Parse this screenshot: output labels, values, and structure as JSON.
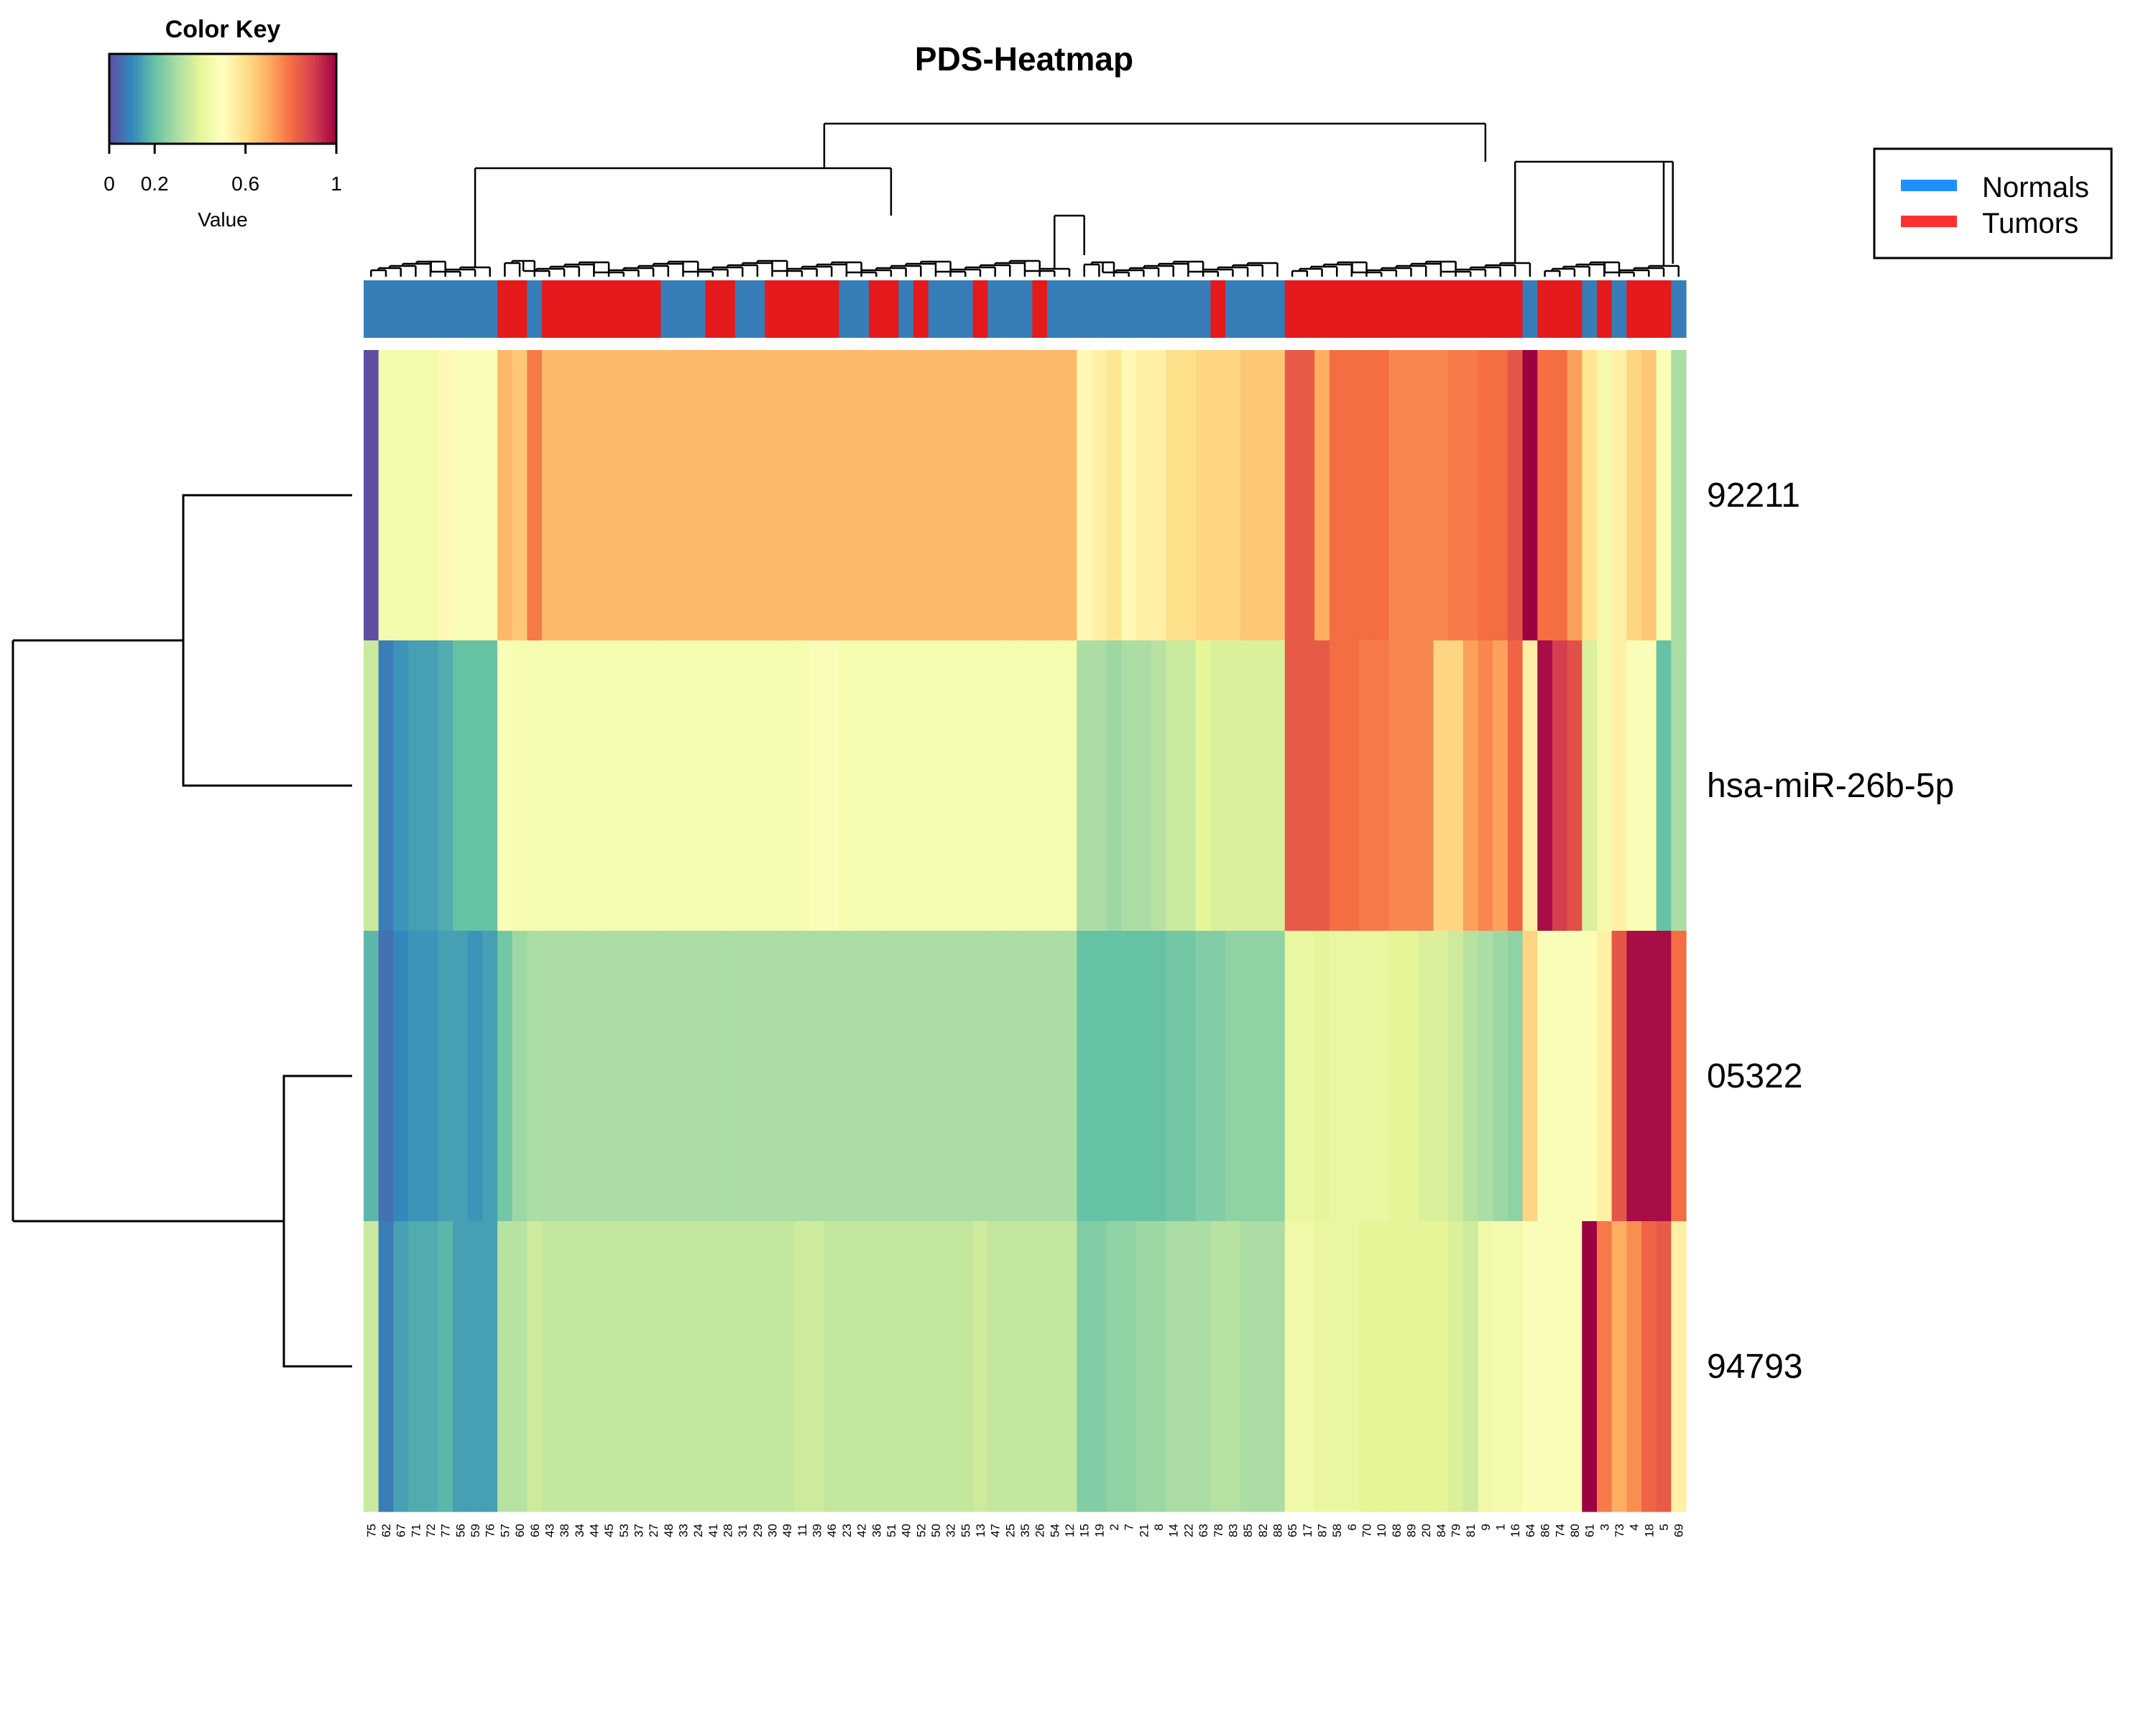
{
  "chart_data": {
    "type": "heatmap",
    "title": "PDS-Heatmap",
    "color_key": {
      "title": "Color Key",
      "xlabel": "Value",
      "ticks": [
        "0",
        "0.2",
        "0.6",
        "1"
      ],
      "tick_values": [
        0,
        0.2,
        0.6,
        1
      ],
      "range": [
        0,
        1
      ],
      "palette": [
        "#5E4FA2",
        "#3288BD",
        "#66C2A5",
        "#ABDDA4",
        "#E6F598",
        "#FFFFBF",
        "#FEE08B",
        "#FDAE61",
        "#F46D43",
        "#D53E4F",
        "#9E0142"
      ]
    },
    "legend": {
      "position": "top-right",
      "entries": [
        {
          "label": "Normals",
          "color": "#1E90FF"
        },
        {
          "label": "Tumors",
          "color": "#FF3030"
        }
      ]
    },
    "group_colors": {
      "N": "#377EB8",
      "T": "#E41A1C"
    },
    "rows": [
      "92211",
      "hsa-miR-26b-5p",
      "05322",
      "94793"
    ],
    "columns": [
      "75",
      "62",
      "67",
      "71",
      "72",
      "77",
      "56",
      "59",
      "76",
      "57",
      "60",
      "66",
      "43",
      "38",
      "34",
      "44",
      "45",
      "53",
      "37",
      "27",
      "48",
      "33",
      "24",
      "41",
      "28",
      "31",
      "29",
      "30",
      "49",
      "11",
      "39",
      "46",
      "23",
      "42",
      "36",
      "51",
      "40",
      "52",
      "50",
      "32",
      "55",
      "13",
      "47",
      "25",
      "35",
      "26",
      "54",
      "12",
      "15",
      "19",
      "2",
      "7",
      "21",
      "8",
      "14",
      "22",
      "63",
      "78",
      "83",
      "85",
      "82",
      "88",
      "65",
      "17",
      "87",
      "58",
      "6",
      "70",
      "10",
      "68",
      "89",
      "20",
      "84",
      "79",
      "81",
      "9",
      "1",
      "16",
      "64",
      "86",
      "74",
      "80",
      "61",
      "3",
      "73",
      "4",
      "18",
      "5",
      "69"
    ],
    "column_groups": [
      "N",
      "N",
      "N",
      "N",
      "N",
      "N",
      "N",
      "N",
      "N",
      "T",
      "T",
      "N",
      "T",
      "T",
      "T",
      "T",
      "T",
      "T",
      "T",
      "T",
      "N",
      "N",
      "N",
      "T",
      "T",
      "N",
      "N",
      "T",
      "T",
      "T",
      "T",
      "T",
      "N",
      "N",
      "T",
      "T",
      "N",
      "T",
      "N",
      "N",
      "N",
      "T",
      "N",
      "N",
      "N",
      "T",
      "N",
      "N",
      "N",
      "N",
      "N",
      "N",
      "N",
      "N",
      "N",
      "N",
      "N",
      "T",
      "N",
      "N",
      "N",
      "N",
      "T",
      "T",
      "T",
      "T",
      "T",
      "T",
      "T",
      "T",
      "T",
      "T",
      "T",
      "T",
      "T",
      "T",
      "T",
      "T",
      "N",
      "T",
      "T",
      "T",
      "N",
      "T",
      "N",
      "T",
      "T",
      "T",
      "N"
    ],
    "values": [
      [
        0.0,
        0.45,
        0.45,
        0.45,
        0.45,
        0.52,
        0.48,
        0.48,
        0.48,
        0.68,
        0.65,
        0.78,
        0.68,
        0.68,
        0.68,
        0.68,
        0.68,
        0.68,
        0.68,
        0.68,
        0.68,
        0.68,
        0.68,
        0.68,
        0.68,
        0.68,
        0.68,
        0.68,
        0.68,
        0.68,
        0.68,
        0.68,
        0.68,
        0.68,
        0.68,
        0.68,
        0.68,
        0.68,
        0.68,
        0.68,
        0.68,
        0.68,
        0.68,
        0.68,
        0.68,
        0.68,
        0.68,
        0.68,
        0.52,
        0.55,
        0.58,
        0.52,
        0.55,
        0.55,
        0.6,
        0.6,
        0.62,
        0.62,
        0.62,
        0.65,
        0.65,
        0.65,
        0.84,
        0.84,
        0.7,
        0.8,
        0.8,
        0.8,
        0.8,
        0.76,
        0.76,
        0.76,
        0.76,
        0.78,
        0.78,
        0.8,
        0.8,
        0.85,
        1.0,
        0.8,
        0.8,
        0.72,
        0.58,
        0.45,
        0.55,
        0.62,
        0.65,
        0.48,
        0.3
      ],
      [
        0.35,
        0.08,
        0.12,
        0.14,
        0.14,
        0.16,
        0.2,
        0.2,
        0.2,
        0.48,
        0.46,
        0.46,
        0.46,
        0.46,
        0.46,
        0.46,
        0.46,
        0.46,
        0.46,
        0.46,
        0.46,
        0.46,
        0.46,
        0.46,
        0.46,
        0.46,
        0.46,
        0.46,
        0.46,
        0.46,
        0.48,
        0.48,
        0.46,
        0.46,
        0.46,
        0.46,
        0.46,
        0.46,
        0.46,
        0.46,
        0.46,
        0.46,
        0.46,
        0.46,
        0.46,
        0.46,
        0.46,
        0.46,
        0.3,
        0.3,
        0.28,
        0.3,
        0.3,
        0.32,
        0.35,
        0.35,
        0.4,
        0.38,
        0.38,
        0.38,
        0.38,
        0.38,
        0.84,
        0.84,
        0.84,
        0.8,
        0.8,
        0.78,
        0.78,
        0.76,
        0.76,
        0.76,
        0.62,
        0.62,
        0.72,
        0.76,
        0.72,
        0.82,
        0.55,
        0.98,
        0.9,
        0.86,
        0.38,
        0.45,
        0.55,
        0.48,
        0.48,
        0.2,
        0.3
      ],
      [
        0.18,
        0.06,
        0.1,
        0.12,
        0.12,
        0.14,
        0.14,
        0.12,
        0.14,
        0.22,
        0.28,
        0.3,
        0.3,
        0.3,
        0.3,
        0.3,
        0.3,
        0.3,
        0.3,
        0.3,
        0.3,
        0.3,
        0.3,
        0.3,
        0.3,
        0.3,
        0.3,
        0.3,
        0.3,
        0.3,
        0.3,
        0.3,
        0.3,
        0.3,
        0.3,
        0.3,
        0.3,
        0.3,
        0.3,
        0.3,
        0.3,
        0.3,
        0.3,
        0.3,
        0.3,
        0.3,
        0.3,
        0.3,
        0.2,
        0.2,
        0.2,
        0.2,
        0.2,
        0.2,
        0.22,
        0.22,
        0.24,
        0.24,
        0.26,
        0.26,
        0.26,
        0.26,
        0.42,
        0.42,
        0.4,
        0.42,
        0.42,
        0.42,
        0.42,
        0.4,
        0.4,
        0.38,
        0.38,
        0.36,
        0.32,
        0.3,
        0.28,
        0.26,
        0.62,
        0.48,
        0.48,
        0.48,
        0.48,
        0.55,
        0.85,
        0.98,
        0.98,
        0.98,
        0.8
      ],
      [
        0.35,
        0.08,
        0.14,
        0.16,
        0.16,
        0.18,
        0.14,
        0.14,
        0.14,
        0.32,
        0.32,
        0.36,
        0.34,
        0.34,
        0.34,
        0.34,
        0.34,
        0.34,
        0.34,
        0.34,
        0.34,
        0.34,
        0.34,
        0.34,
        0.34,
        0.34,
        0.34,
        0.34,
        0.34,
        0.36,
        0.36,
        0.34,
        0.34,
        0.34,
        0.34,
        0.34,
        0.34,
        0.34,
        0.34,
        0.34,
        0.34,
        0.36,
        0.34,
        0.34,
        0.34,
        0.34,
        0.34,
        0.34,
        0.24,
        0.24,
        0.26,
        0.26,
        0.28,
        0.28,
        0.3,
        0.3,
        0.3,
        0.32,
        0.32,
        0.3,
        0.3,
        0.3,
        0.44,
        0.44,
        0.42,
        0.42,
        0.42,
        0.4,
        0.4,
        0.4,
        0.4,
        0.4,
        0.4,
        0.38,
        0.36,
        0.44,
        0.45,
        0.45,
        0.48,
        0.48,
        0.48,
        0.48,
        1.0,
        0.78,
        0.7,
        0.75,
        0.82,
        0.84,
        0.55
      ]
    ]
  }
}
